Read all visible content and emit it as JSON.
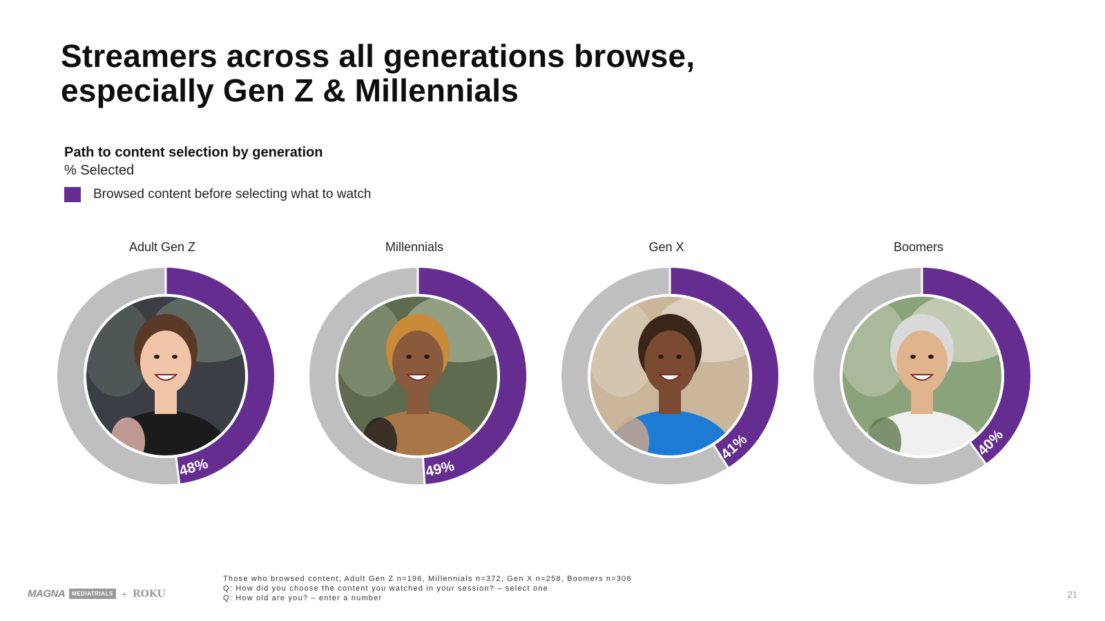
{
  "title_line1": "Streamers across all generations browse,",
  "title_line2": "especially Gen Z & Millennials",
  "page_number": "21",
  "logos": {
    "magna": "MAGNA",
    "mediatrials": "MEDIATRIALS",
    "plus": "+",
    "roku": "ROKU"
  },
  "footnotes": [
    "Those who browsed content, Adult Gen Z n=196, Millennials n=372, Gen X n=258, Boomers n=306",
    "Q: How did you choose the content you watched in your session? – select one",
    "Q: How old are you? – enter a number"
  ],
  "colors": {
    "accent": "#662d91",
    "track": "#bfbfbf",
    "background": "#ffffff"
  },
  "chart_data": {
    "type": "donut",
    "title": "Path to content selection by generation",
    "subtitle": "% Selected",
    "legend": [
      {
        "label": "Browsed content before selecting what to watch",
        "color": "#662d91"
      }
    ],
    "categories": [
      "Adult Gen Z",
      "Millennials",
      "Gen X",
      "Boomers"
    ],
    "series": [
      {
        "name": "Browsed content before selecting what to watch",
        "values": [
          48,
          49,
          41,
          40
        ]
      }
    ],
    "value_labels": [
      "48%",
      "49%",
      "41%",
      "40%"
    ],
    "photos": [
      "young-woman-photo",
      "millennial-man-photo",
      "genx-woman-photo",
      "boomer-man-photo"
    ]
  }
}
